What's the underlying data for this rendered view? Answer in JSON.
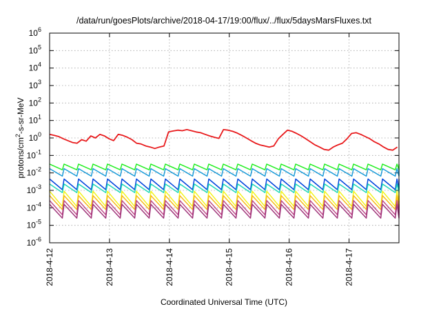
{
  "chart_data": {
    "type": "line",
    "title": "/data/run/goesPlots/archive/2018-04-17/19:00/flux/../flux/5daysMarsFluxes.txt",
    "xlabel": "Coordinated Universal Time (UTC)",
    "ylabel": {
      "pre": "protons/cm",
      "sup": "2",
      "post": "-s-sr-MeV"
    },
    "y_scale": "log",
    "ylim": [
      1e-06,
      1000000.0
    ],
    "y_ticks": [
      {
        "base": "10",
        "exp": "-6",
        "value": 1e-06
      },
      {
        "base": "10",
        "exp": "-5",
        "value": 1e-05
      },
      {
        "base": "10",
        "exp": "-4",
        "value": 0.0001
      },
      {
        "base": "10",
        "exp": "-3",
        "value": 0.001
      },
      {
        "base": "10",
        "exp": "-2",
        "value": 0.01
      },
      {
        "base": "10",
        "exp": "-1",
        "value": 0.1
      },
      {
        "base": "10",
        "exp": "0",
        "value": 1
      },
      {
        "base": "10",
        "exp": "1",
        "value": 10
      },
      {
        "base": "10",
        "exp": "2",
        "value": 100
      },
      {
        "base": "10",
        "exp": "3",
        "value": 1000
      },
      {
        "base": "10",
        "exp": "4",
        "value": 10000
      },
      {
        "base": "10",
        "exp": "5",
        "value": 100000
      },
      {
        "base": "10",
        "exp": "6",
        "value": 1000000
      }
    ],
    "x_ticks": [
      "2018-4-12",
      "2018-4-13",
      "2018-4-14",
      "2018-4-15",
      "2018-4-16",
      "2018-4-17"
    ],
    "xlim": [
      "2018-04-12T00:00",
      "2018-04-17T20:00"
    ],
    "grid": true,
    "series": [
      {
        "color": "#e8191b",
        "x": [
          "2018-04-12T00:00",
          "2018-04-12T01:50",
          "2018-04-12T03:40",
          "2018-04-12T05:30",
          "2018-04-12T07:20",
          "2018-04-12T09:10",
          "2018-04-12T11:00",
          "2018-04-12T12:50",
          "2018-04-12T14:40",
          "2018-04-12T16:30",
          "2018-04-12T18:20",
          "2018-04-12T20:10",
          "2018-04-12T22:00",
          "2018-04-12T23:50",
          "2018-04-13T01:40",
          "2018-04-13T03:30",
          "2018-04-13T05:20",
          "2018-04-13T07:10",
          "2018-04-13T09:00",
          "2018-04-13T10:50",
          "2018-04-13T12:40",
          "2018-04-13T14:30",
          "2018-04-13T16:20",
          "2018-04-13T18:10",
          "2018-04-13T20:00",
          "2018-04-13T21:50",
          "2018-04-13T23:40",
          "2018-04-14T01:30",
          "2018-04-14T03:20",
          "2018-04-14T05:10",
          "2018-04-14T07:00",
          "2018-04-14T08:50",
          "2018-04-14T10:40",
          "2018-04-14T12:30",
          "2018-04-14T14:20",
          "2018-04-14T16:10",
          "2018-04-14T18:00",
          "2018-04-14T19:50",
          "2018-04-14T21:40",
          "2018-04-14T23:30",
          "2018-04-15T01:20",
          "2018-04-15T03:10",
          "2018-04-15T05:00",
          "2018-04-15T06:50",
          "2018-04-15T08:40",
          "2018-04-15T10:30",
          "2018-04-15T12:20",
          "2018-04-15T14:10",
          "2018-04-15T16:00",
          "2018-04-15T17:50",
          "2018-04-15T19:40",
          "2018-04-15T21:30",
          "2018-04-15T23:20",
          "2018-04-16T01:10",
          "2018-04-16T03:00",
          "2018-04-16T04:50",
          "2018-04-16T06:40",
          "2018-04-16T08:30",
          "2018-04-16T10:20",
          "2018-04-16T12:10",
          "2018-04-16T14:00",
          "2018-04-16T15:50",
          "2018-04-16T17:40",
          "2018-04-16T19:30",
          "2018-04-16T21:20",
          "2018-04-16T23:10",
          "2018-04-17T01:00",
          "2018-04-17T02:50",
          "2018-04-17T04:40",
          "2018-04-17T06:30",
          "2018-04-17T08:20",
          "2018-04-17T10:10",
          "2018-04-17T12:00",
          "2018-04-17T13:50",
          "2018-04-17T15:40",
          "2018-04-17T17:30",
          "2018-04-17T19:20"
        ],
        "values": [
          1.6,
          1.4,
          1.2,
          0.9,
          0.7,
          0.55,
          0.5,
          0.8,
          0.65,
          1.3,
          1.0,
          1.6,
          1.3,
          0.9,
          0.7,
          1.6,
          1.4,
          1.1,
          0.8,
          0.5,
          0.45,
          0.35,
          0.3,
          0.25,
          0.3,
          0.35,
          2.2,
          2.5,
          2.8,
          2.6,
          3.0,
          2.6,
          2.2,
          2.0,
          1.6,
          1.3,
          1.1,
          0.95,
          3.0,
          2.8,
          2.4,
          1.9,
          1.4,
          1.0,
          0.7,
          0.5,
          0.4,
          0.35,
          0.3,
          0.35,
          0.9,
          1.6,
          2.8,
          2.4,
          1.8,
          1.3,
          0.9,
          0.6,
          0.4,
          0.3,
          0.22,
          0.2,
          0.3,
          0.4,
          0.5,
          0.9,
          1.8,
          2.0,
          1.6,
          1.2,
          0.9,
          0.6,
          0.45,
          0.3,
          0.22,
          0.2,
          0.3
        ]
      },
      {
        "color": "#22ee22",
        "cycle": 5.8,
        "high": 0.032,
        "low": 0.015
      },
      {
        "color": "#1a9bd8",
        "cycle": 5.8,
        "high": 0.0175,
        "low": 0.0065
      },
      {
        "color": "#0044dd",
        "cycle": 5.8,
        "high": 0.0045,
        "low": 0.0011
      },
      {
        "color": "#1fd8b8",
        "cycle": 5.8,
        "high": 0.0023,
        "low": 0.00075
      },
      {
        "color": "#f3f316",
        "cycle": 5.8,
        "high": 0.0009,
        "low": 0.00012
      },
      {
        "color": "#f8ba18",
        "cycle": 5.8,
        "high": 0.0005,
        "low": 8e-05
      },
      {
        "color": "#bf4b8a",
        "cycle": 5.8,
        "high": 0.00026,
        "low": 4e-05
      },
      {
        "color": "#a0347a",
        "cycle": 5.8,
        "high": 0.00016,
        "low": 2.6e-05
      }
    ]
  }
}
